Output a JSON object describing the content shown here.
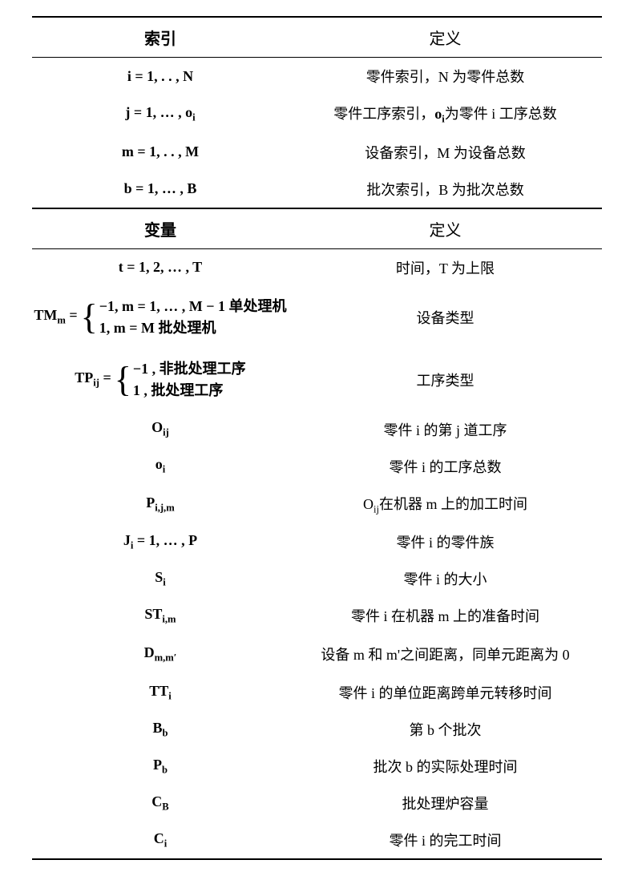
{
  "header1": {
    "col1": "索引",
    "col2": "定义"
  },
  "indices": [
    {
      "symbol": "i = 1, . . , N",
      "def": "零件索引，N 为零件总数"
    },
    {
      "symbol": "j = 1, … , oᵢ",
      "def": "零件工序索引，oᵢ为零件 i 工序总数"
    },
    {
      "symbol": "m = 1, . . , M",
      "def": "设备索引，M 为设备总数"
    },
    {
      "symbol": "b = 1, … , B",
      "def": "批次索引，B 为批次总数"
    }
  ],
  "header2": {
    "col1": "变量",
    "col2": "定义"
  },
  "variables": {
    "t": {
      "symbol": "t = 1, 2, … , T",
      "def": "时间，T 为上限"
    },
    "tm": {
      "label": "TMₘ = ",
      "case1": "−1, m = 1, … , M − 1 单处理机",
      "case2": "1, m = M 批处理机",
      "def": "设备类型"
    },
    "tp": {
      "label": "TPᵢⱼ = ",
      "case1": "−1 , 非批处理工序",
      "case2": "1 , 批处理工序",
      "def": "工序类型"
    },
    "oij": {
      "symbol": "Oᵢⱼ",
      "def": "零件 i 的第 j 道工序"
    },
    "oi": {
      "symbol": "oᵢ",
      "def": "零件 i 的工序总数"
    },
    "pijm": {
      "symbol": "Pᵢ,ⱼ,ₘ",
      "def": "Oᵢⱼ在机器 m 上的加工时间"
    },
    "ji": {
      "symbol": "Jᵢ = 1, … , P",
      "def": "零件 i 的零件族"
    },
    "si": {
      "symbol": "Sᵢ",
      "def": "零件 i 的大小"
    },
    "stim": {
      "symbol": "STᵢ,ₘ",
      "def": "零件 i 在机器 m 上的准备时间"
    },
    "dmm": {
      "symbol": "Dₘ,ₘ′",
      "def": "设备 m 和 m'之间距离，同单元距离为 0"
    },
    "tti": {
      "symbol": "TTᵢ",
      "def": "零件 i 的单位距离跨单元转移时间"
    },
    "bb": {
      "symbol": "Bᵦ",
      "def": "第 b 个批次"
    },
    "pb": {
      "symbol": "Pᵦ",
      "def": "批次 b 的实际处理时间"
    },
    "cb": {
      "symbol": "C_B",
      "def": "批处理炉容量"
    },
    "ci": {
      "symbol": "Cᵢ",
      "def": "零件 i 的完工时间"
    }
  }
}
